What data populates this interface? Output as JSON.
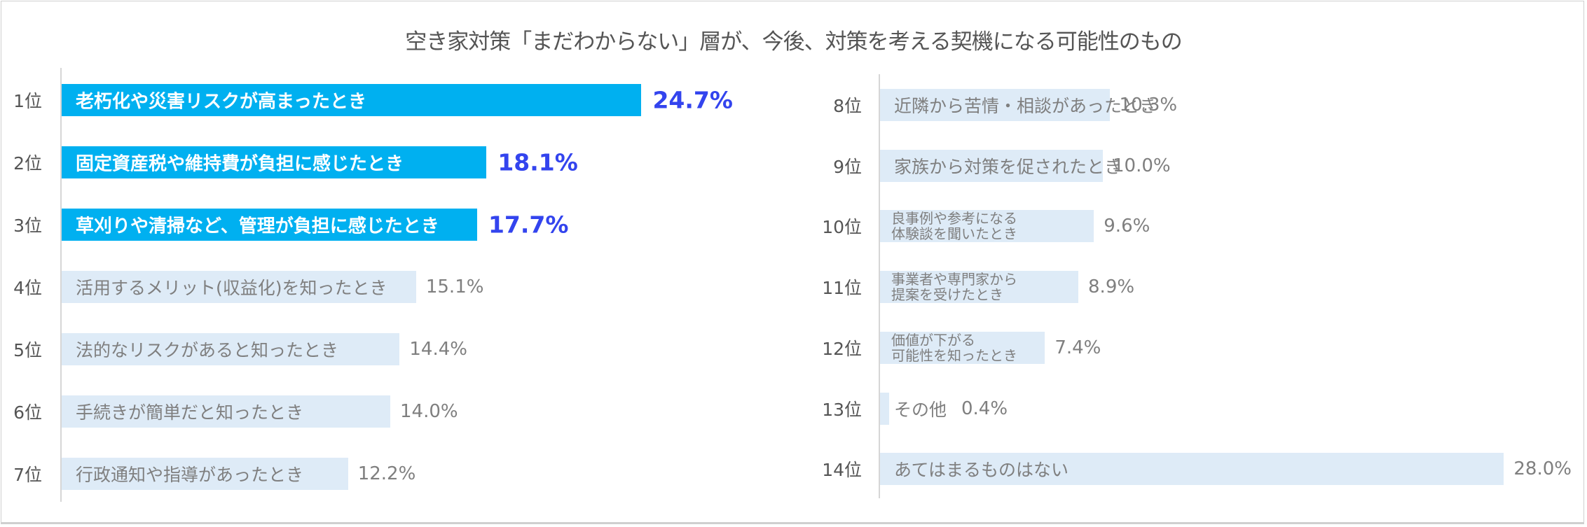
{
  "title": "空き家対策「まだわからない」層が、今後、対策を考える契機になる可能性のもの",
  "colors": {
    "highlight_bar": "#00b0f0",
    "normal_bar": "#deebf7",
    "highlight_value": "#3344ee",
    "normal_text": "#7f7f7f"
  },
  "left": [
    {
      "rank": "1位",
      "label": "老朽化や災害リスクが高まったとき",
      "value": "24.7%"
    },
    {
      "rank": "2位",
      "label": "固定資産税や維持費が負担に感じたとき",
      "value": "18.1%"
    },
    {
      "rank": "3位",
      "label": "草刈りや清掃など、管理が負担に感じたとき",
      "value": "17.7%"
    },
    {
      "rank": "4位",
      "label": "活用するメリット(収益化)を知ったとき",
      "value": "15.1%"
    },
    {
      "rank": "5位",
      "label": "法的なリスクがあると知ったとき",
      "value": "14.4%"
    },
    {
      "rank": "6位",
      "label": "手続きが簡単だと知ったとき",
      "value": "14.0%"
    },
    {
      "rank": "7位",
      "label": "行政通知や指導があったとき",
      "value": "12.2%"
    }
  ],
  "right": [
    {
      "rank": "8位",
      "label": "近隣から苦情・相談があったとき",
      "value": "10.3%"
    },
    {
      "rank": "9位",
      "label": "家族から対策を促されたとき",
      "value": "10.0%"
    },
    {
      "rank": "10位",
      "label": "良事例や参考になる\n体験談を聞いたとき",
      "value": "9.6%"
    },
    {
      "rank": "11位",
      "label": "事業者や専門家から\n提案を受けたとき",
      "value": "8.9%"
    },
    {
      "rank": "12位",
      "label": "価値が下がる\n可能性を知ったとき",
      "value": "7.4%"
    },
    {
      "rank": "13位",
      "label": "その他",
      "value": "0.4%"
    },
    {
      "rank": "14位",
      "label": "あてはまるものはない",
      "value": "28.0%"
    }
  ],
  "chart_data": {
    "type": "bar",
    "orientation": "horizontal",
    "title": "空き家対策「まだわからない」層が、今後、対策を考える契機になる可能性のもの",
    "categories": [
      "老朽化や災害リスクが高まったとき",
      "固定資産税や維持費が負担に感じたとき",
      "草刈りや清掃など、管理が負担に感じたとき",
      "活用するメリット(収益化)を知ったとき",
      "法的なリスクがあると知ったとき",
      "手続きが簡単だと知ったとき",
      "行政通知や指導があったとき",
      "近隣から苦情・相談があったとき",
      "家族から対策を促されたとき",
      "良事例や参考になる体験談を聞いたとき",
      "事業者や専門家から提案を受けたとき",
      "価値が下がる可能性を知ったとき",
      "その他",
      "あてはまるものはない"
    ],
    "values": [
      24.7,
      18.1,
      17.7,
      15.1,
      14.4,
      14.0,
      12.2,
      10.3,
      10.0,
      9.6,
      8.9,
      7.4,
      0.4,
      28.0
    ],
    "ranks": [
      "1位",
      "2位",
      "3位",
      "4位",
      "5位",
      "6位",
      "7位",
      "8位",
      "9位",
      "10位",
      "11位",
      "12位",
      "13位",
      "14位"
    ],
    "unit": "%",
    "highlighted": [
      0,
      1,
      2
    ],
    "xlabel": "",
    "ylabel": "",
    "grid": false,
    "legend": null,
    "layout": "two panels: ranks 1-7 left, ranks 8-14 right"
  }
}
